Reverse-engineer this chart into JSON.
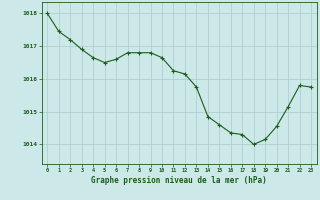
{
  "x": [
    0,
    1,
    2,
    3,
    4,
    5,
    6,
    7,
    8,
    9,
    10,
    11,
    12,
    13,
    14,
    15,
    16,
    17,
    18,
    19,
    20,
    21,
    22,
    23
  ],
  "y": [
    1018.0,
    1017.45,
    1017.2,
    1016.9,
    1016.65,
    1016.5,
    1016.6,
    1016.8,
    1016.8,
    1016.8,
    1016.65,
    1016.25,
    1016.15,
    1015.75,
    1014.85,
    1014.6,
    1014.35,
    1014.3,
    1014.0,
    1014.15,
    1014.55,
    1015.15,
    1015.8,
    1015.75
  ],
  "line_color": "#1a5e1a",
  "marker_color": "#1a5e1a",
  "bg_color": "#cce8e8",
  "grid_color": "#aacccc",
  "xlabel": "Graphe pression niveau de la mer (hPa)",
  "xlabel_color": "#1a5e1a",
  "tick_color": "#1a5e1a",
  "ylabel_ticks": [
    1014,
    1015,
    1016,
    1017,
    1018
  ],
  "ylim": [
    1013.4,
    1018.35
  ],
  "xlim": [
    -0.5,
    23.5
  ],
  "xticks": [
    0,
    1,
    2,
    3,
    4,
    5,
    6,
    7,
    8,
    9,
    10,
    11,
    12,
    13,
    14,
    15,
    16,
    17,
    18,
    19,
    20,
    21,
    22,
    23
  ]
}
